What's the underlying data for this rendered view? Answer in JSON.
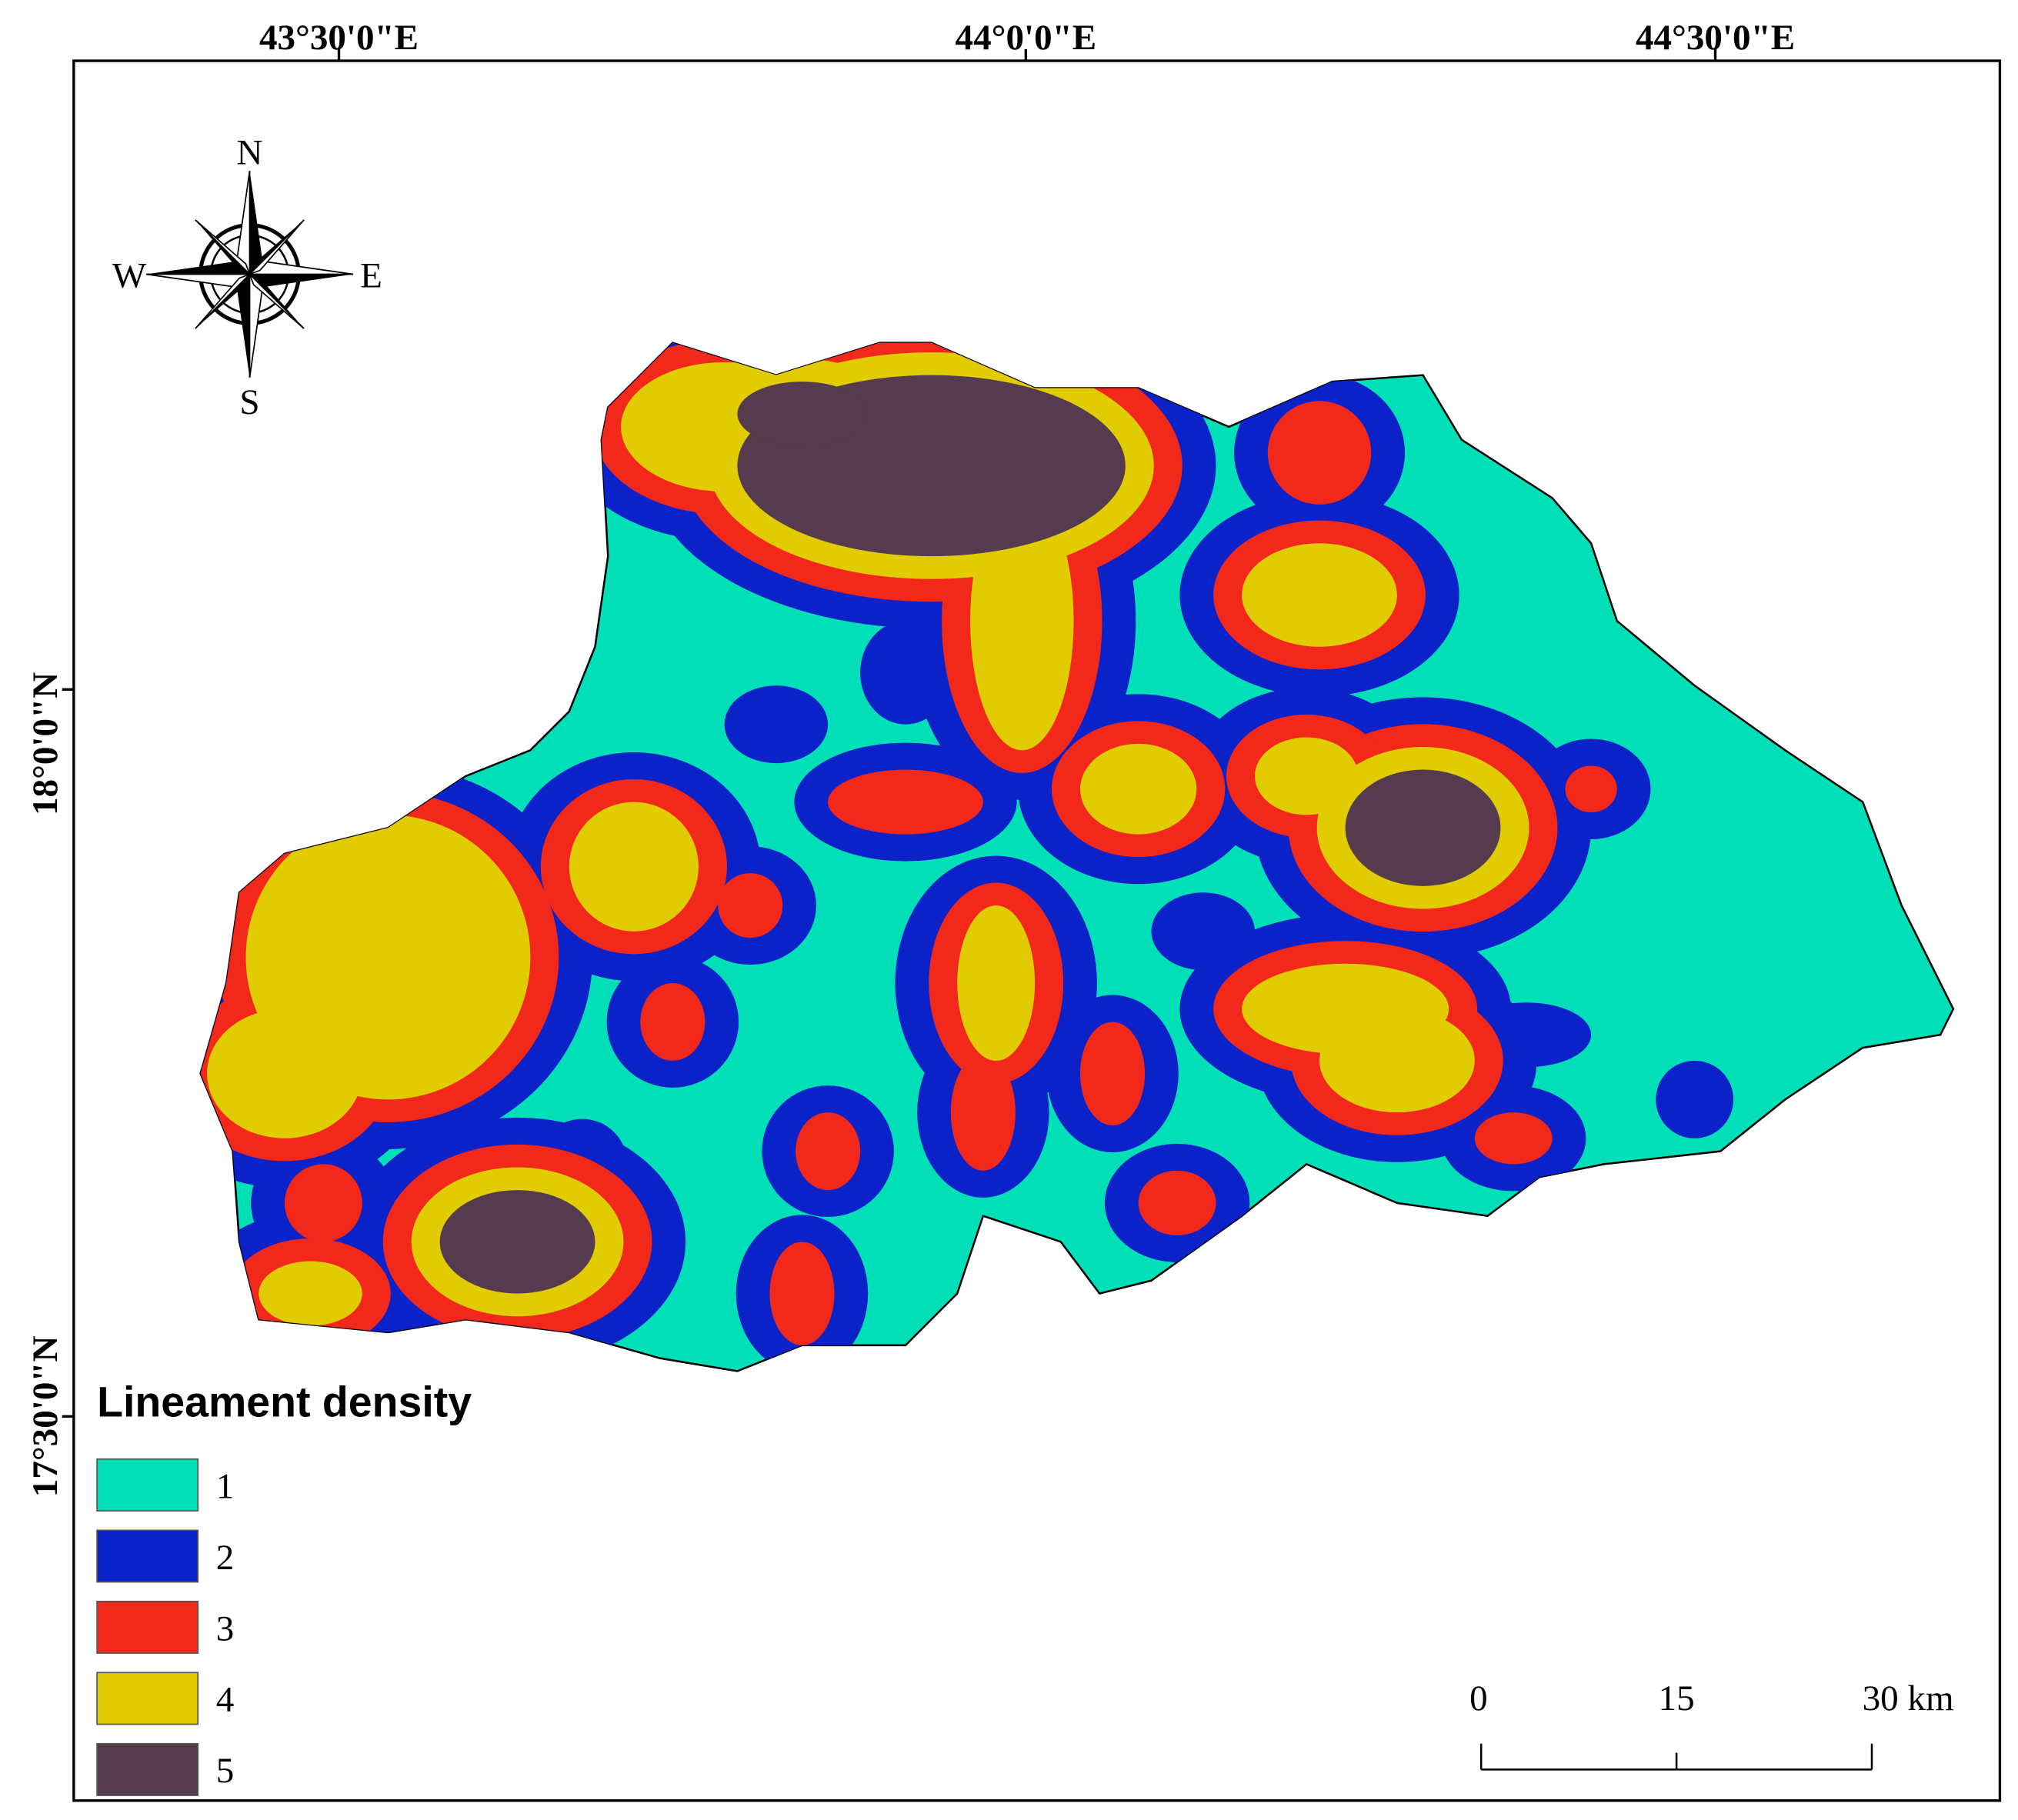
{
  "map": {
    "graticule": {
      "top": [
        "43°30'0\"E",
        "44°0'0\"E",
        "44°30'0\"E"
      ],
      "left": [
        "18°0'0\"N",
        "17°30'0\"N"
      ]
    },
    "compass": {
      "n": "N",
      "s": "S",
      "w": "W",
      "e": "E"
    },
    "legend": {
      "title": "Lineament density",
      "items": [
        {
          "label": "1",
          "color": "#00dfb8"
        },
        {
          "label": "2",
          "color": "#0a22c8"
        },
        {
          "label": "3",
          "color": "#f2281a"
        },
        {
          "label": "4",
          "color": "#e0cc00"
        },
        {
          "label": "5",
          "color": "#553b4d"
        }
      ]
    },
    "scale_bar": {
      "labels": [
        "0",
        "15",
        "30 km"
      ]
    }
  }
}
